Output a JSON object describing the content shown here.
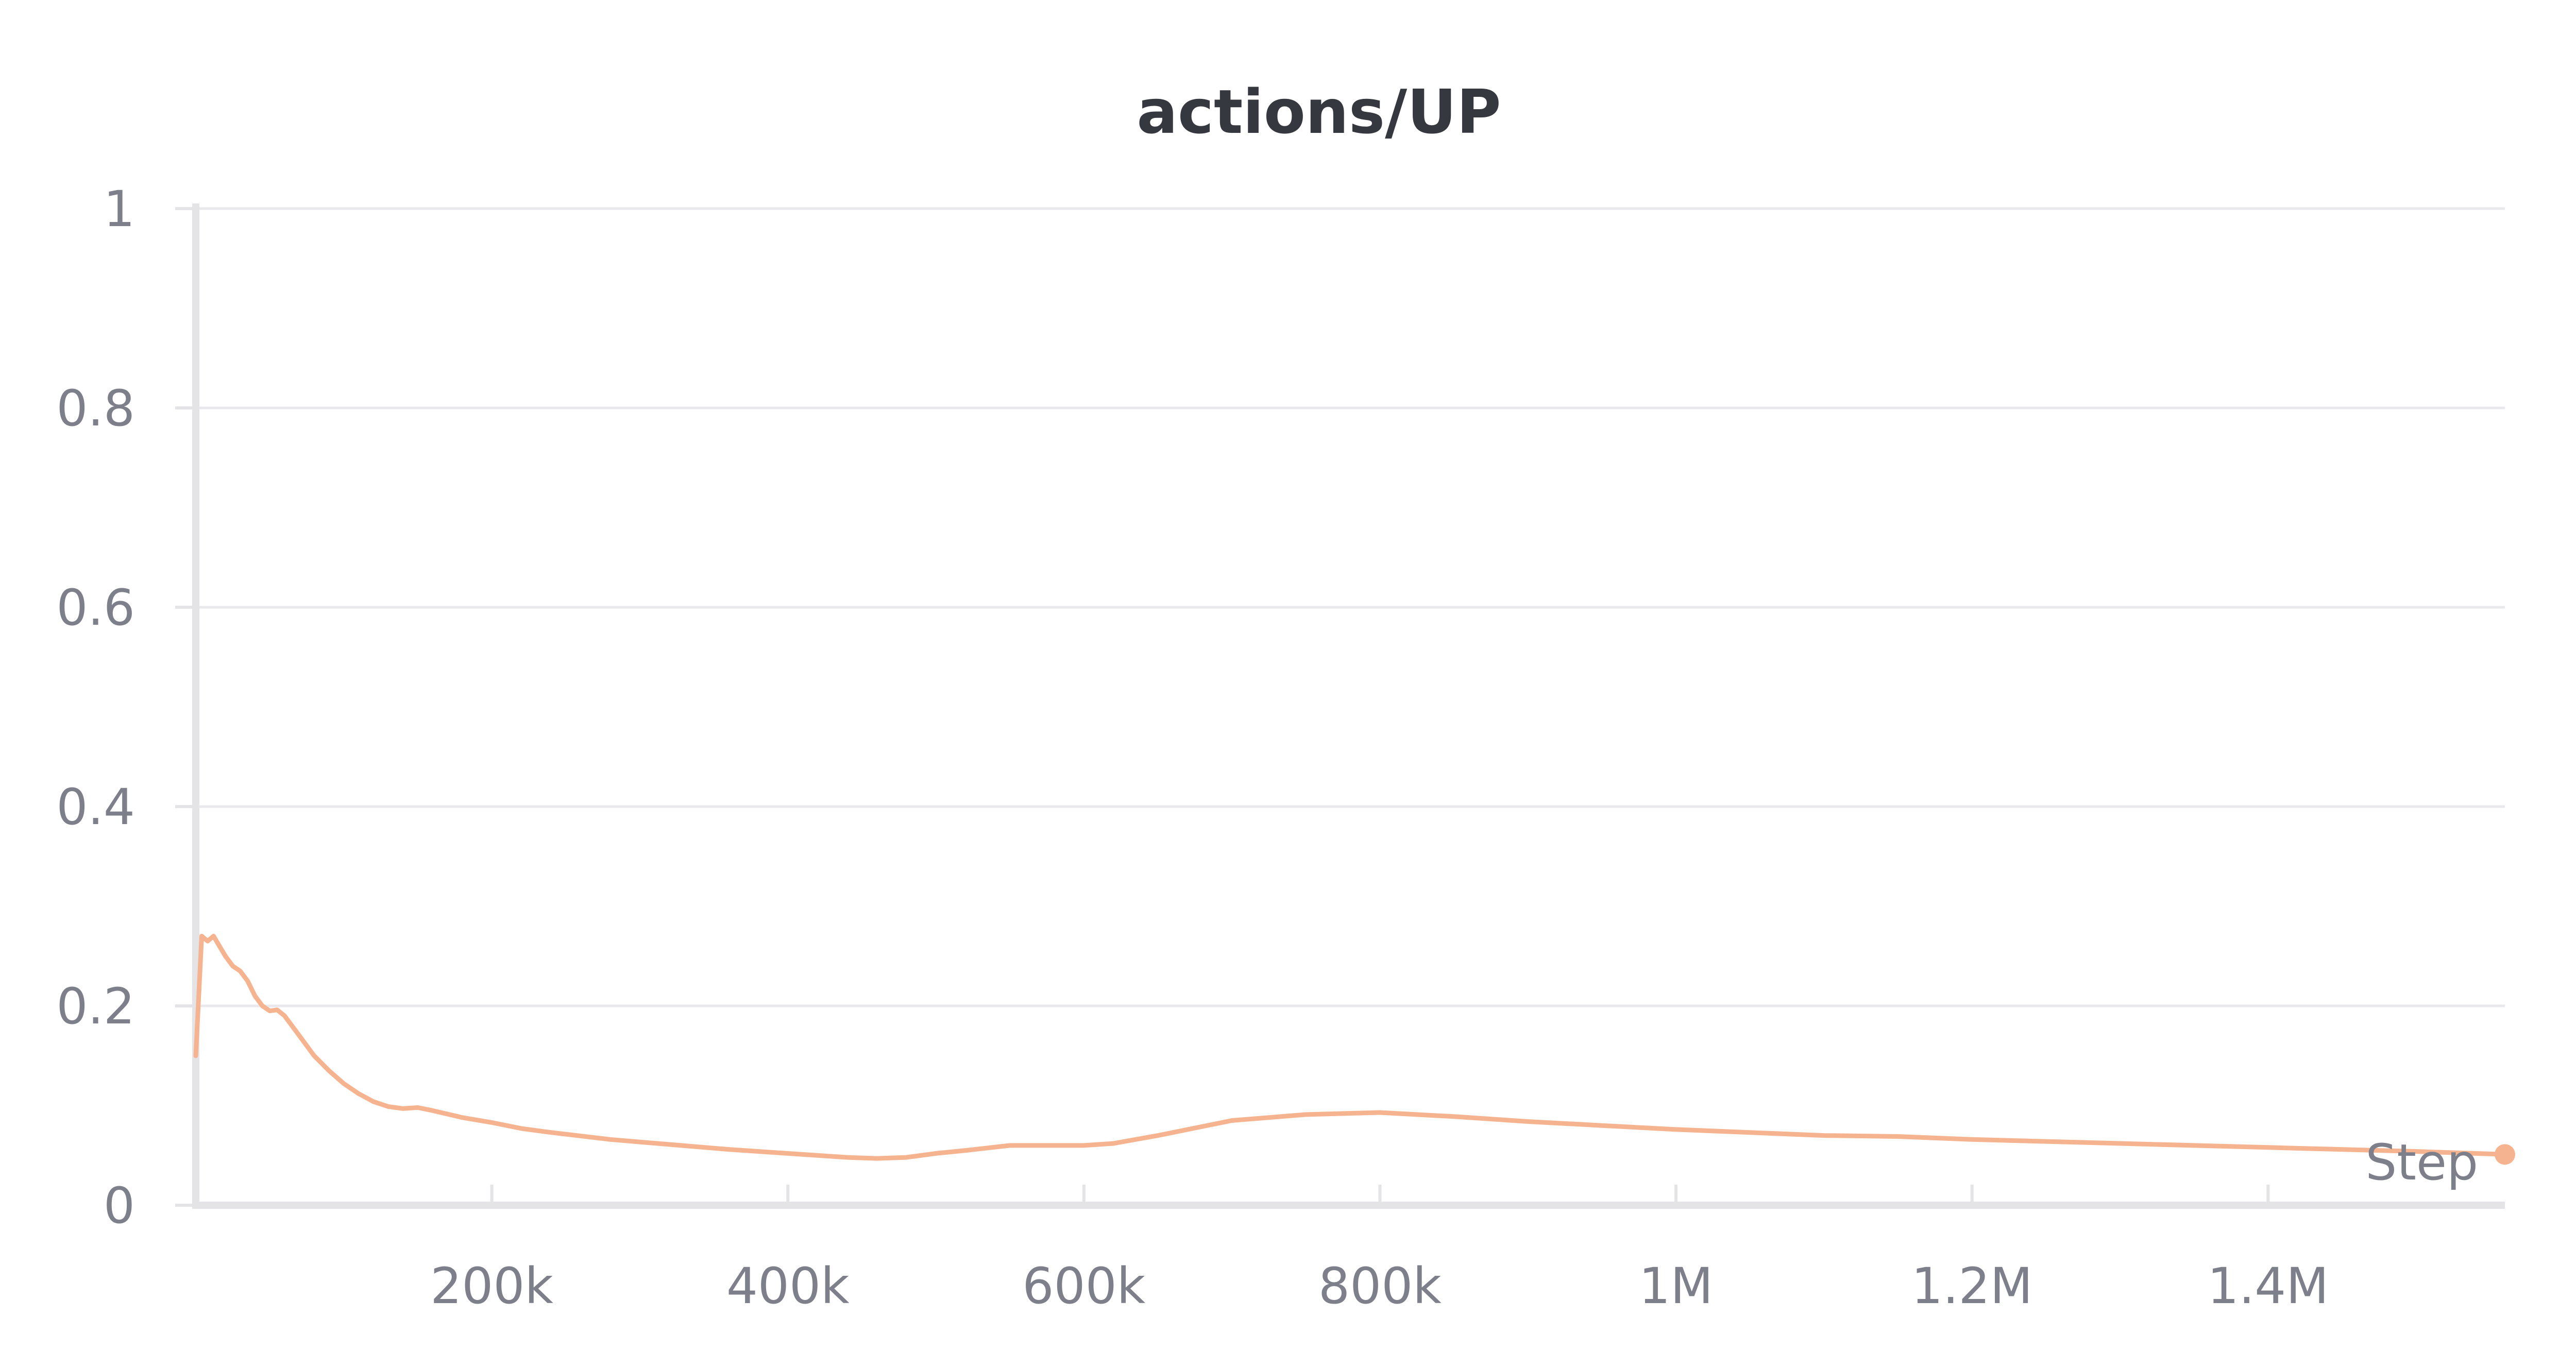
{
  "chart_data": {
    "type": "line",
    "title": "actions/UP",
    "xlabel": "Step",
    "ylabel": "",
    "xlim": [
      0,
      1560000
    ],
    "ylim": [
      0,
      1
    ],
    "x_ticks": [
      {
        "value": 200000,
        "label": "200k"
      },
      {
        "value": 400000,
        "label": "400k"
      },
      {
        "value": 600000,
        "label": "600k"
      },
      {
        "value": 800000,
        "label": "800k"
      },
      {
        "value": 1000000,
        "label": "1M"
      },
      {
        "value": 1200000,
        "label": "1.2M"
      },
      {
        "value": 1400000,
        "label": "1.4M"
      }
    ],
    "y_ticks": [
      {
        "value": 0,
        "label": "0"
      },
      {
        "value": 0.2,
        "label": "0.2"
      },
      {
        "value": 0.4,
        "label": "0.4"
      },
      {
        "value": 0.6,
        "label": "0.6"
      },
      {
        "value": 0.8,
        "label": "0.8"
      },
      {
        "value": 1,
        "label": "1"
      }
    ],
    "grid": true,
    "series": [
      {
        "color": "#f5b48f",
        "x": [
          0,
          4000,
          8000,
          12000,
          16000,
          20000,
          25000,
          30000,
          35000,
          40000,
          45000,
          50000,
          55000,
          60000,
          65000,
          70000,
          80000,
          90000,
          100000,
          110000,
          120000,
          130000,
          140000,
          150000,
          160000,
          180000,
          200000,
          220000,
          240000,
          280000,
          320000,
          360000,
          400000,
          440000,
          460000,
          480000,
          500000,
          520000,
          550000,
          580000,
          600000,
          620000,
          650000,
          700000,
          750000,
          800000,
          850000,
          900000,
          950000,
          1000000,
          1100000,
          1150000,
          1200000,
          1300000,
          1400000,
          1500000,
          1560000
        ],
        "y": [
          0.15,
          0.27,
          0.265,
          0.27,
          0.26,
          0.25,
          0.24,
          0.235,
          0.225,
          0.21,
          0.2,
          0.195,
          0.196,
          0.19,
          0.18,
          0.17,
          0.15,
          0.135,
          0.122,
          0.112,
          0.104,
          0.099,
          0.097,
          0.098,
          0.095,
          0.088,
          0.083,
          0.077,
          0.073,
          0.066,
          0.061,
          0.056,
          0.052,
          0.048,
          0.047,
          0.048,
          0.052,
          0.055,
          0.06,
          0.06,
          0.06,
          0.062,
          0.07,
          0.085,
          0.091,
          0.093,
          0.089,
          0.084,
          0.08,
          0.076,
          0.07,
          0.069,
          0.066,
          0.062,
          0.058,
          0.054,
          0.051
        ]
      }
    ]
  }
}
